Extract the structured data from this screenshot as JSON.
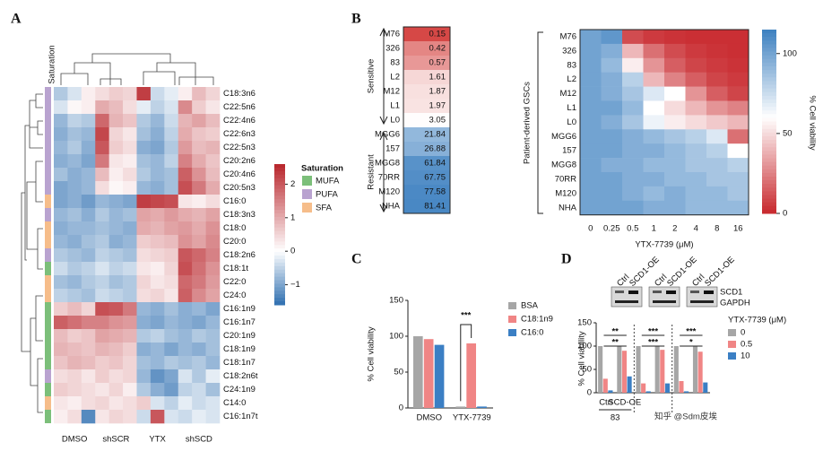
{
  "chart_data": [
    {
      "type": "heatmap",
      "panel": "A",
      "side_label": "Saturation",
      "rows": [
        "C18:3n6",
        "C22:5n6",
        "C22:4n6",
        "C22:6n3",
        "C22:5n3",
        "C20:2n6",
        "C20:4n6",
        "C20:5n3",
        "C16:0",
        "C18:3n3",
        "C18:0",
        "C20:0",
        "C18:2n6",
        "C18:1t",
        "C22:0",
        "C24:0",
        "C16:1n9",
        "C16:1n7",
        "C20:1n9",
        "C18:1n9",
        "C18:1n7",
        "C18:2n6t",
        "C24:1n9",
        "C14:0",
        "C16:1n7t"
      ],
      "row_groups": [
        "PUFA",
        "PUFA",
        "PUFA",
        "PUFA",
        "PUFA",
        "PUFA",
        "PUFA",
        "PUFA",
        "SFA",
        "PUFA",
        "SFA",
        "SFA",
        "PUFA",
        "MUFA",
        "SFA",
        "SFA",
        "MUFA",
        "MUFA",
        "MUFA",
        "MUFA",
        "MUFA",
        "PUFA",
        "MUFA",
        "SFA",
        "MUFA"
      ],
      "groups": [
        "DMSO",
        "shSCR",
        "YTX",
        "shSCD"
      ],
      "values": [
        [
          -0.6,
          -0.3,
          0.2,
          0.4,
          0.6,
          0.5,
          2.3,
          -0.4,
          -0.2,
          0.2,
          0.8,
          0.5
        ],
        [
          -0.3,
          0.1,
          0.2,
          1.0,
          0.8,
          0.4,
          -0.2,
          -0.5,
          -0.3,
          1.4,
          0.6,
          0.3
        ],
        [
          -0.8,
          -0.5,
          -0.6,
          1.8,
          0.9,
          0.7,
          -0.6,
          -0.8,
          -0.4,
          0.9,
          1.1,
          0.8
        ],
        [
          -0.9,
          -0.7,
          -0.8,
          2.2,
          0.5,
          0.3,
          -0.7,
          -0.9,
          -0.5,
          1.0,
          0.7,
          0.6
        ],
        [
          -0.8,
          -0.6,
          -0.9,
          2.0,
          0.6,
          0.4,
          -0.9,
          -1.0,
          -0.6,
          1.2,
          0.8,
          0.9
        ],
        [
          -0.9,
          -0.8,
          -1.0,
          1.6,
          0.3,
          0.2,
          -0.7,
          -0.8,
          -0.5,
          1.5,
          1.0,
          0.7
        ],
        [
          -0.7,
          -0.9,
          -0.8,
          0.8,
          0.2,
          0.4,
          -0.6,
          -0.8,
          -0.7,
          1.9,
          1.3,
          0.8
        ],
        [
          -1.0,
          -0.9,
          -0.8,
          0.4,
          0.1,
          0.2,
          -0.8,
          -0.9,
          -0.7,
          2.1,
          1.6,
          1.0
        ],
        [
          -1.0,
          -0.9,
          -1.1,
          -0.8,
          -0.9,
          -1.0,
          2.3,
          2.2,
          2.1,
          0.3,
          0.2,
          0.4
        ],
        [
          -0.8,
          -0.7,
          -0.9,
          -0.6,
          -0.8,
          -0.7,
          1.1,
          1.0,
          1.2,
          1.0,
          0.9,
          1.1
        ],
        [
          -0.9,
          -0.8,
          -0.8,
          -0.7,
          -0.8,
          -0.9,
          1.0,
          0.9,
          1.1,
          1.2,
          1.0,
          1.3
        ],
        [
          -0.8,
          -0.9,
          -0.7,
          -0.6,
          -0.9,
          -0.8,
          0.6,
          0.7,
          0.8,
          1.3,
          1.1,
          1.4
        ],
        [
          -0.6,
          -0.7,
          -0.8,
          -0.5,
          -0.6,
          -0.7,
          0.4,
          0.5,
          0.6,
          2.0,
          1.8,
          1.5
        ],
        [
          -0.4,
          -0.6,
          -0.5,
          -0.3,
          -0.5,
          -0.4,
          0.3,
          0.2,
          0.5,
          2.1,
          1.7,
          1.3
        ],
        [
          -0.7,
          -0.8,
          -0.6,
          -0.5,
          -0.7,
          -0.6,
          0.5,
          0.3,
          0.4,
          1.8,
          1.6,
          1.2
        ],
        [
          -0.5,
          -0.6,
          -0.7,
          -0.4,
          -0.5,
          -0.6,
          0.4,
          0.5,
          0.3,
          1.9,
          1.4,
          1.1
        ],
        [
          0.6,
          0.8,
          0.5,
          2.1,
          2.0,
          1.6,
          -0.8,
          -0.9,
          -0.7,
          -0.9,
          -0.8,
          -1.0
        ],
        [
          1.9,
          1.7,
          1.5,
          1.5,
          1.3,
          1.2,
          -0.9,
          -1.0,
          -0.8,
          -0.9,
          -1.0,
          -0.8
        ],
        [
          0.8,
          0.6,
          0.7,
          1.1,
          1.0,
          0.9,
          -0.6,
          -0.5,
          -0.7,
          -0.8,
          -0.6,
          -0.7
        ],
        [
          0.9,
          0.8,
          0.7,
          0.9,
          0.8,
          0.6,
          -0.9,
          -0.8,
          -1.0,
          -0.8,
          -0.9,
          -0.7
        ],
        [
          0.7,
          0.9,
          0.8,
          0.6,
          0.7,
          0.5,
          -0.7,
          -0.8,
          -0.6,
          -0.7,
          -0.6,
          -0.8
        ],
        [
          0.4,
          0.5,
          0.3,
          0.6,
          0.4,
          0.5,
          -0.8,
          -1.2,
          -1.0,
          -0.3,
          -0.6,
          -0.2
        ],
        [
          0.6,
          0.5,
          0.4,
          0.3,
          0.5,
          0.2,
          -0.6,
          -0.9,
          -1.1,
          -0.5,
          -0.4,
          -0.7
        ],
        [
          0.3,
          0.2,
          0.4,
          0.5,
          0.3,
          0.4,
          0.6,
          -0.3,
          -0.5,
          -0.2,
          -0.4,
          -0.3
        ],
        [
          0.2,
          0.4,
          -1.3,
          0.3,
          0.5,
          0.4,
          -0.4,
          2.0,
          -0.3,
          -0.4,
          -0.2,
          -0.3
        ]
      ],
      "legend_title": "Saturation",
      "legend": [
        {
          "name": "MUFA",
          "color": "#7cbf7a"
        },
        {
          "name": "PUFA",
          "color": "#b9a3d0"
        },
        {
          "name": "SFA",
          "color": "#f6bd8a"
        }
      ],
      "clim": [
        -1.6,
        2.6
      ],
      "cticks": [
        2,
        1,
        0,
        {
          "value": -1,
          "label": "−1"
        }
      ]
    },
    {
      "type": "heatmap",
      "panel": "B",
      "rows": [
        "M76",
        "326",
        "83",
        "L2",
        "M12",
        "L1",
        "L0",
        "MGG6",
        "157",
        "MGG8",
        "70RR",
        "M120",
        "NHA"
      ],
      "ic50": [
        0.15,
        0.42,
        0.57,
        1.61,
        1.87,
        1.97,
        3.05,
        21.84,
        26.88,
        61.84,
        67.75,
        77.58,
        81.41
      ],
      "sensitive_label": "Sensitive",
      "resistant_label": "Resistant",
      "x": [
        0,
        0.25,
        0.5,
        1,
        2,
        4,
        8,
        16
      ],
      "values": [
        [
          100,
          105,
          10,
          5,
          3,
          2,
          2,
          2
        ],
        [
          100,
          95,
          40,
          20,
          10,
          5,
          3,
          2
        ],
        [
          100,
          90,
          55,
          30,
          15,
          8,
          5,
          3
        ],
        [
          100,
          95,
          80,
          40,
          25,
          15,
          8,
          5
        ],
        [
          100,
          95,
          85,
          70,
          60,
          30,
          15,
          8
        ],
        [
          100,
          100,
          90,
          60,
          50,
          40,
          30,
          25
        ],
        [
          100,
          95,
          85,
          65,
          55,
          50,
          45,
          40
        ],
        [
          100,
          100,
          95,
          90,
          85,
          80,
          70,
          20
        ],
        [
          100,
          100,
          95,
          95,
          90,
          85,
          80,
          60
        ],
        [
          100,
          95,
          95,
          90,
          90,
          85,
          85,
          80
        ],
        [
          100,
          100,
          95,
          95,
          90,
          90,
          85,
          85
        ],
        [
          100,
          100,
          95,
          90,
          95,
          90,
          90,
          85
        ],
        [
          100,
          100,
          100,
          95,
          95,
          90,
          90,
          90
        ]
      ],
      "xlabel": "YTX-7739 (μM)",
      "ylabel": "Patient-derived GSCs",
      "clabel": "% Cell viability",
      "clim": [
        0,
        115
      ],
      "cticks": [
        0,
        50,
        100
      ]
    },
    {
      "type": "bar",
      "panel": "C",
      "categories": [
        "DMSO",
        "YTX-7739"
      ],
      "series": [
        {
          "name": "BSA",
          "color": "#a6a6a6",
          "values": [
            100,
            2
          ]
        },
        {
          "name": "C18:1n9",
          "color": "#f08585",
          "values": [
            96,
            90
          ]
        },
        {
          "name": "C16:0",
          "color": "#3b7fc4",
          "values": [
            88,
            2
          ]
        }
      ],
      "ylabel": "% Cell viability",
      "ylim": [
        0,
        150
      ],
      "yticks": [
        0,
        50,
        100,
        150
      ],
      "annotations": [
        "***"
      ]
    },
    {
      "type": "bar",
      "panel": "D",
      "categories": [
        "Ctrl",
        "SCD-OE",
        null,
        null,
        null,
        null
      ],
      "group_labels": [
        "83"
      ],
      "series": [
        {
          "name": "0",
          "color": "#a6a6a6",
          "values": [
            100,
            100,
            100,
            100,
            100,
            100
          ]
        },
        {
          "name": "0.5",
          "color": "#f08585",
          "values": [
            30,
            90,
            20,
            92,
            25,
            88
          ]
        },
        {
          "name": "10",
          "color": "#3b7fc4",
          "values": [
            5,
            35,
            3,
            20,
            3,
            22
          ]
        }
      ],
      "legend_title": "YTX-7739 (μM)",
      "ylabel": "% Cell viability",
      "ylim": [
        0,
        150
      ],
      "yticks": [
        0,
        50,
        100,
        150
      ],
      "annotations": [
        "**",
        "**",
        "***",
        "***",
        "***",
        "*"
      ],
      "blot_lanes": [
        "Ctrl",
        "SCD1-OE"
      ],
      "blot_proteins": [
        "SCD1",
        "GAPDH"
      ],
      "watermark": "知乎 @Sdm皮埃"
    }
  ]
}
